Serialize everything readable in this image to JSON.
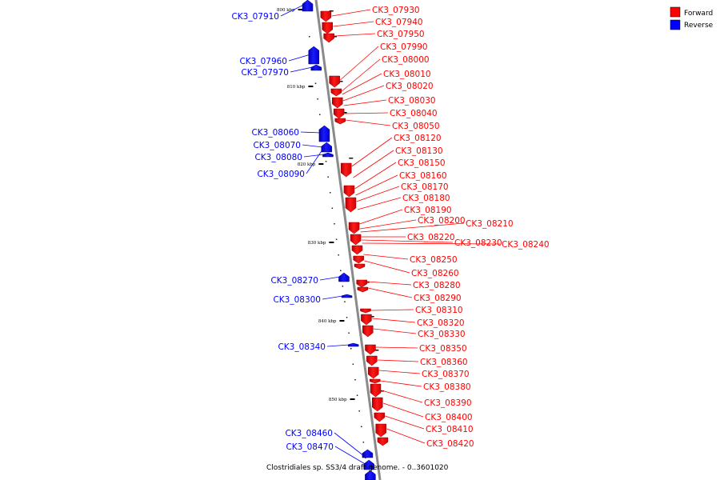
{
  "caption": "Clostridiales sp. SS3/4 draft genome. - 0..3601020",
  "legend": {
    "forward_label": "Forward",
    "reverse_label": "Reverse",
    "forward_color": "#ff0000",
    "reverse_color": "#0000ff"
  },
  "ticks": [
    "800 kbp",
    "810 kbp",
    "820 kbp",
    "830 kbp",
    "840 kbp",
    "850 kbp"
  ],
  "reverse_genes": [
    "CK3_07910",
    "CK3_07960",
    "CK3_07970",
    "CK3_08060",
    "CK3_08070",
    "CK3_08080",
    "CK3_08090",
    "CK3_08270",
    "CK3_08300",
    "CK3_08340",
    "CK3_08460",
    "CK3_08470"
  ],
  "forward_genes": [
    "CK3_07930",
    "CK3_07940",
    "CK3_07950",
    "CK3_07990",
    "CK3_08000",
    "CK3_08010",
    "CK3_08020",
    "CK3_08030",
    "CK3_08040",
    "CK3_08050",
    "CK3_08120",
    "CK3_08130",
    "CK3_08150",
    "CK3_08160",
    "CK3_08170",
    "CK3_08180",
    "CK3_08190",
    "CK3_08200",
    "CK3_08210",
    "CK3_08220",
    "CK3_08230",
    "CK3_08240",
    "CK3_08250",
    "CK3_08260",
    "CK3_08280",
    "CK3_08290",
    "CK3_08310",
    "CK3_08320",
    "CK3_08330",
    "CK3_08350",
    "CK3_08360",
    "CK3_08370",
    "CK3_08380",
    "CK3_08390",
    "CK3_08400",
    "CK3_08410",
    "CK3_08420"
  ]
}
